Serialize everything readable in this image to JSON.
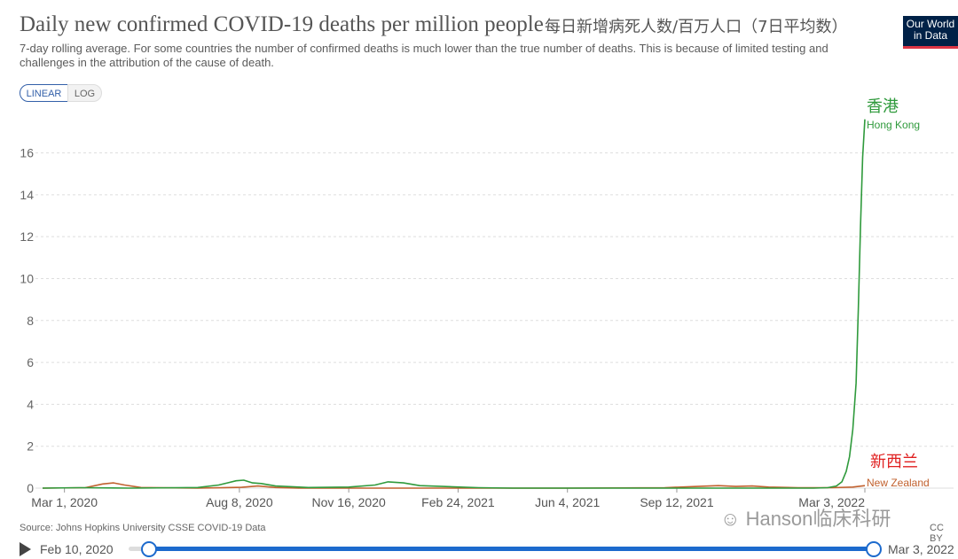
{
  "header": {
    "title": "Daily new confirmed COVID-19 deaths per million people",
    "title_cn": "每日新增病死人数/百万人口（7日平均数）",
    "subtitle": "7-day rolling average. For some countries the number of confirmed deaths is much lower than the true number of deaths. This is because of limited testing and challenges in the attribution of the cause of death.",
    "logo_line1": "Our World",
    "logo_line2": "in Data"
  },
  "controls": {
    "linear_label": "LINEAR",
    "log_label": "LOG",
    "selected": "linear"
  },
  "footer": {
    "source": "Source: Johns Hopkins University CSSE COVID-19 Data",
    "license": "CC BY",
    "watermark": "Hanson临床科研"
  },
  "timeline": {
    "start_label": "Feb 10, 2020",
    "end_label": "Mar 3, 2022"
  },
  "colors": {
    "hong_kong": "#2f9a3c",
    "new_zealand": "#c1612e",
    "annotation_red": "#e02020",
    "grid": "#dddddd",
    "accent": "#1c6acd"
  },
  "chart_data": {
    "type": "line",
    "x_type": "date",
    "xlim": [
      "2020-02-10",
      "2022-03-03"
    ],
    "ylim": [
      0,
      17.8
    ],
    "yticks": [
      0,
      2,
      4,
      6,
      8,
      10,
      12,
      14,
      16
    ],
    "xticks": [
      "2020-03-01",
      "2020-08-08",
      "2020-11-16",
      "2021-02-24",
      "2021-06-04",
      "2021-09-12",
      "2022-03-03"
    ],
    "xtick_labels": [
      "Mar 1, 2020",
      "Aug 8, 2020",
      "Nov 16, 2020",
      "Feb 24, 2021",
      "Jun 4, 2021",
      "Sep 12, 2021",
      "Mar 3, 2022"
    ],
    "grid": "horizontal dashed",
    "scale": "linear",
    "series": [
      {
        "name": "Hong Kong",
        "label_cn": "香港",
        "color": "#2f9a3c",
        "x": [
          "2020-02-10",
          "2020-03-15",
          "2020-05-01",
          "2020-07-01",
          "2020-07-20",
          "2020-07-28",
          "2020-08-05",
          "2020-08-12",
          "2020-08-20",
          "2020-08-28",
          "2020-09-10",
          "2020-10-10",
          "2020-11-16",
          "2020-12-10",
          "2020-12-22",
          "2021-01-05",
          "2021-01-20",
          "2021-02-10",
          "2021-03-15",
          "2021-04-15",
          "2021-06-04",
          "2021-09-12",
          "2021-12-01",
          "2022-01-15",
          "2022-01-28",
          "2022-02-05",
          "2022-02-10",
          "2022-02-14",
          "2022-02-17",
          "2022-02-20",
          "2022-02-23",
          "2022-02-25",
          "2022-02-27",
          "2022-03-01",
          "2022-03-03"
        ],
        "y": [
          0.0,
          0.02,
          0.0,
          0.03,
          0.15,
          0.25,
          0.35,
          0.38,
          0.25,
          0.22,
          0.1,
          0.03,
          0.05,
          0.15,
          0.3,
          0.25,
          0.12,
          0.08,
          0.02,
          0.0,
          0.0,
          0.0,
          0.0,
          0.0,
          0.02,
          0.1,
          0.3,
          0.8,
          1.5,
          2.8,
          5.0,
          8.5,
          12.5,
          15.8,
          17.6
        ]
      },
      {
        "name": "New Zealand",
        "label_cn": "新西兰",
        "color": "#c1612e",
        "x": [
          "2020-02-10",
          "2020-03-20",
          "2020-04-05",
          "2020-04-15",
          "2020-04-25",
          "2020-05-10",
          "2020-07-01",
          "2020-08-10",
          "2020-08-25",
          "2020-09-10",
          "2020-10-01",
          "2021-06-01",
          "2021-09-01",
          "2021-10-01",
          "2021-10-20",
          "2021-11-05",
          "2021-11-20",
          "2021-12-05",
          "2022-01-01",
          "2022-02-01",
          "2022-02-20",
          "2022-03-03"
        ],
        "y": [
          0.0,
          0.02,
          0.2,
          0.25,
          0.15,
          0.03,
          0.0,
          0.04,
          0.1,
          0.03,
          0.0,
          0.0,
          0.02,
          0.08,
          0.12,
          0.08,
          0.1,
          0.05,
          0.02,
          0.02,
          0.05,
          0.12
        ]
      }
    ]
  }
}
